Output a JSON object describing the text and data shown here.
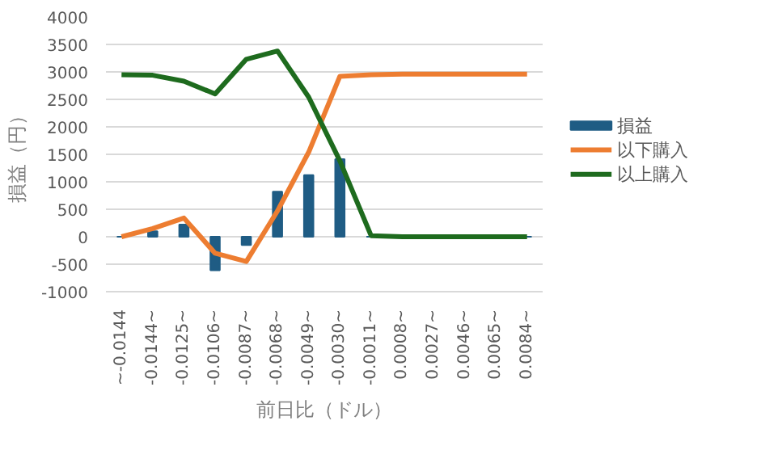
{
  "chart_data": {
    "type": "bar",
    "xlabel": "前日比（ドル）",
    "ylabel": "損益（円）",
    "categories": [
      "~-0.0144",
      "-0.0144~",
      "-0.0125~",
      "-0.0106~",
      "-0.0087~",
      "-0.0068~",
      "-0.0049~",
      "-0.0030~",
      "-0.0011~",
      "0.0008~",
      "0.0027~",
      "0.0046~",
      "0.0065~",
      "0.0084~"
    ],
    "series": [
      {
        "name": "損益",
        "color": "#1f5c84",
        "values": [
          0,
          100,
          220,
          -610,
          -150,
          820,
          1120,
          1410,
          0,
          0,
          0,
          0,
          0,
          0
        ]
      },
      {
        "name": "以下購入",
        "type": "line",
        "color": "#ed7d31",
        "values": [
          0,
          150,
          340,
          -300,
          -450,
          470,
          1540,
          2920,
          2950,
          2960,
          2960,
          2960,
          2960,
          2960
        ]
      },
      {
        "name": "以上購入",
        "type": "line",
        "color": "#1e6b1e",
        "values": [
          2950,
          2940,
          2830,
          2600,
          3230,
          3380,
          2540,
          1380,
          20,
          0,
          0,
          0,
          0,
          0
        ]
      }
    ],
    "ylim": [
      -1000,
      4000
    ],
    "yticks": [
      -1000,
      -500,
      0,
      500,
      1000,
      1500,
      2000,
      2500,
      3000,
      3500,
      4000
    ],
    "grid": "y",
    "legend": "right"
  }
}
